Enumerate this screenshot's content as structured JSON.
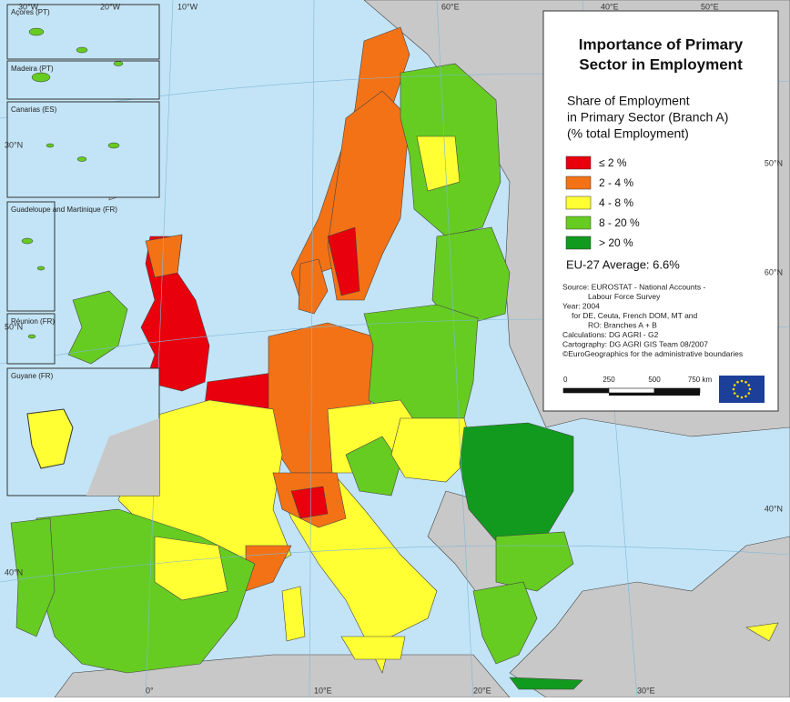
{
  "title": [
    "Importance of Primary",
    "Sector in Employment"
  ],
  "legend": {
    "title": [
      "Share of Employment",
      "in Primary Sector (Branch A)",
      "(% total Employment)"
    ],
    "items": [
      {
        "label": "≤ 2 %",
        "color": "#e8000c"
      },
      {
        "label": "2 - 4 %",
        "color": "#f47216"
      },
      {
        "label": "4 - 8 %",
        "color": "#ffff33"
      },
      {
        "label": "8 - 20 %",
        "color": "#66cc22"
      },
      {
        "label": "> 20 %",
        "color": "#119a1e"
      }
    ]
  },
  "average": "EU-27 Average: 6.6%",
  "source": [
    "Source: EUROSTAT - National Accounts -",
    "Labour Force Survey",
    "Year: 2004",
    "for DE, Ceuta, French DOM, MT and",
    "RO: Branches A + B",
    "Calculations: DG AGRI - G2",
    "Cartography: DG AGRI GIS Team 08/2007",
    "©EuroGeographics for the administrative boundaries"
  ],
  "scale_bar": [
    "0",
    "250",
    "500",
    "750 km"
  ],
  "insets": [
    "Açores (PT)",
    "Madeira (PT)",
    "Canarias (ES)",
    "Guadeloupe and Martinique (FR)",
    "Réunion (FR)",
    "Guyane (FR)"
  ],
  "graticule": [
    "30°W",
    "20°W",
    "10°W",
    "0°",
    "10°E",
    "20°E",
    "30°E",
    "40°E",
    "50°E",
    "60°E",
    "50°N",
    "40°N",
    "30°N",
    "60°N",
    "50°N",
    "40°N"
  ]
}
